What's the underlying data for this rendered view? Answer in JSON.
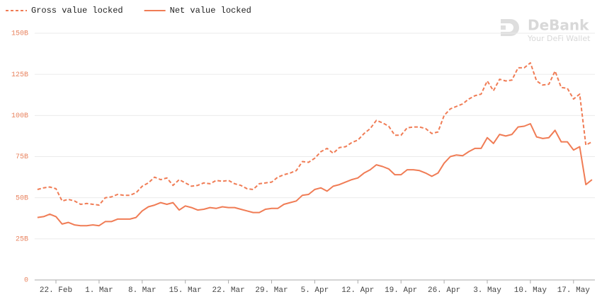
{
  "chart_data": {
    "type": "line",
    "categories": [
      null,
      null,
      null,
      "22. Feb",
      null,
      null,
      null,
      null,
      null,
      null,
      "1. Mar",
      null,
      null,
      null,
      null,
      null,
      null,
      "8. Mar",
      null,
      null,
      null,
      null,
      null,
      null,
      "15. Mar",
      null,
      null,
      null,
      null,
      null,
      null,
      "22. Mar",
      null,
      null,
      null,
      null,
      null,
      null,
      "29. Mar",
      null,
      null,
      null,
      null,
      null,
      null,
      "5. Apr",
      null,
      null,
      null,
      null,
      null,
      null,
      "12. Apr",
      null,
      null,
      null,
      null,
      null,
      null,
      "19. Apr",
      null,
      null,
      null,
      null,
      null,
      null,
      "26. Apr",
      null,
      null,
      null,
      null,
      null,
      null,
      "3. May",
      null,
      null,
      null,
      null,
      null,
      null,
      "10. May",
      null,
      null,
      null,
      null,
      null,
      null,
      "17. May",
      null,
      null,
      null
    ],
    "series": [
      {
        "name": "Gross value locked",
        "color": "#f07c55",
        "dashed": true,
        "values": [
          55,
          56,
          56.5,
          55.5,
          48,
          49,
          48,
          46,
          46.5,
          46,
          45.5,
          50,
          50.5,
          52,
          51.5,
          51.5,
          53,
          57,
          59,
          62.5,
          61,
          62,
          57.5,
          61,
          59,
          57,
          57.5,
          59,
          58.5,
          60.5,
          60,
          60.5,
          58.5,
          57.5,
          55.5,
          55,
          58.5,
          59,
          59.5,
          62.5,
          64,
          65,
          66.5,
          72,
          71.5,
          74,
          78,
          80,
          77,
          80.5,
          81,
          83.5,
          85,
          89,
          92,
          97,
          95.5,
          93.5,
          88,
          88,
          92.5,
          93,
          93,
          92,
          89,
          90,
          100,
          104,
          105.5,
          107,
          110,
          112,
          113,
          121,
          115,
          122,
          121,
          121.5,
          129,
          129,
          132,
          121,
          118.5,
          119,
          127,
          117,
          116.5,
          110,
          113,
          82,
          84
        ]
      },
      {
        "name": "Net value locked",
        "color": "#f07c55",
        "dashed": false,
        "values": [
          38,
          38.5,
          40,
          38.5,
          34,
          35,
          33.5,
          33,
          33,
          33.5,
          33,
          35.5,
          35.5,
          37,
          37,
          37,
          38,
          42,
          44.5,
          45.5,
          47,
          46,
          47,
          42.5,
          45,
          44,
          42.5,
          43,
          44,
          43.5,
          44.5,
          44,
          44,
          43,
          42,
          41,
          41,
          43,
          43.5,
          43.5,
          46,
          47,
          48,
          51.5,
          52,
          55,
          56,
          54,
          57,
          58,
          59.5,
          61,
          62,
          65,
          67,
          70,
          69,
          67.5,
          64,
          64,
          67,
          67,
          66.5,
          65,
          63,
          65,
          71,
          75,
          76,
          75.5,
          78,
          80,
          80,
          86.5,
          83,
          88.5,
          87.5,
          88.5,
          93,
          93.5,
          95,
          87,
          86,
          86.5,
          91,
          84,
          84,
          79,
          81,
          58,
          61
        ]
      }
    ],
    "ylim": [
      0,
      150
    ],
    "yticks": [
      0,
      {
        "value": 25,
        "label": "25B"
      },
      {
        "value": 50,
        "label": "50B"
      },
      {
        "value": 75,
        "label": "75B"
      },
      {
        "value": 100,
        "label": "100B"
      },
      {
        "value": 125,
        "label": "125B"
      },
      {
        "value": 150,
        "label": "150B"
      }
    ],
    "grid": true,
    "legend": "top-left"
  },
  "watermark": {
    "title": "DeBank",
    "subtitle": "Your DeFi Wallet"
  }
}
